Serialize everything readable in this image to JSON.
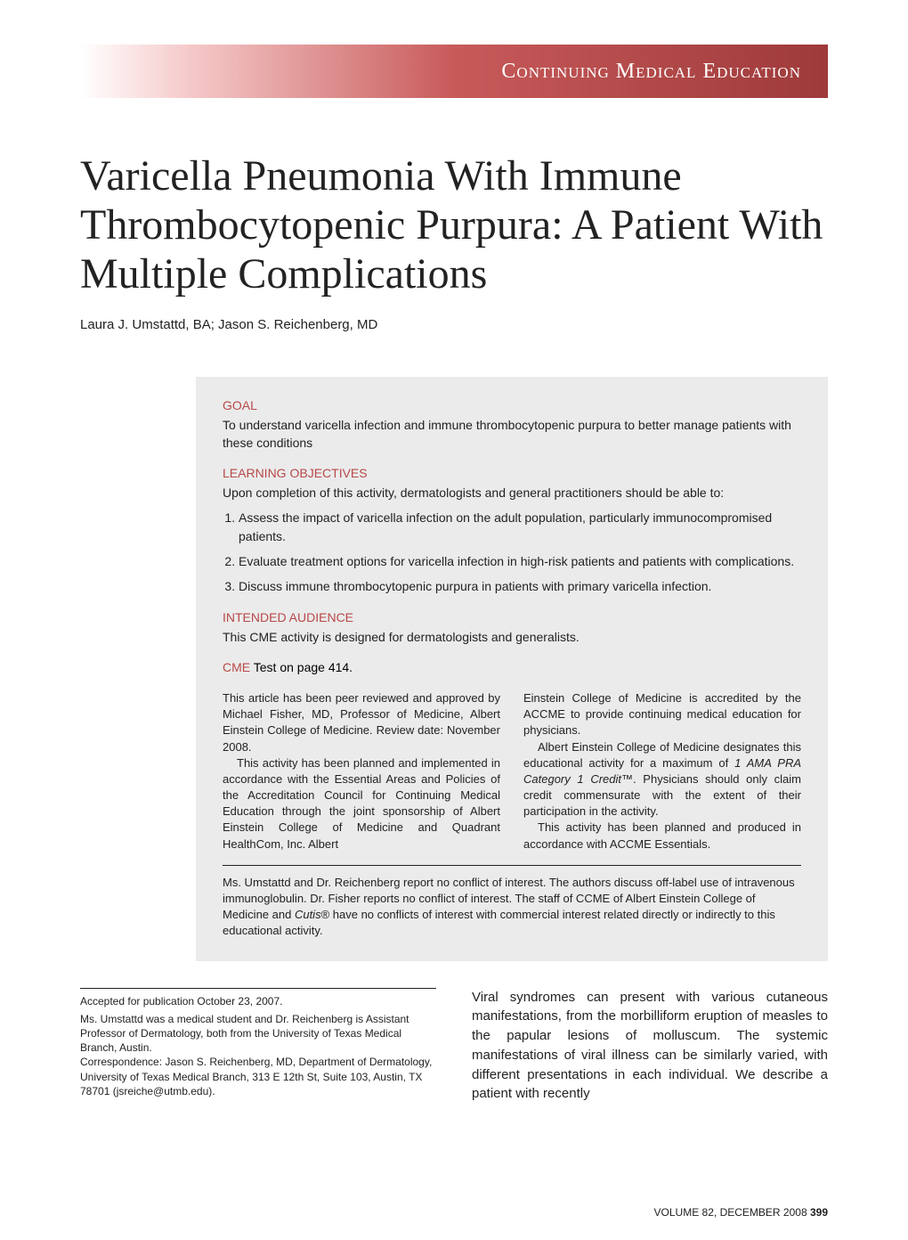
{
  "header": {
    "banner_text": "Continuing Medical Education",
    "gradient_start": "#ffffff",
    "gradient_mid": "#c85a5a",
    "gradient_end": "#9e3a3a",
    "text_color": "#ffffff"
  },
  "article": {
    "title": "Varicella Pneumonia With Immune Thrombocytopenic Purpura: A Patient With Multiple Complications",
    "authors": "Laura J. Umstattd, BA; Jason S. Reichenberg, MD"
  },
  "cme": {
    "goal_head": "GOAL",
    "goal_body": "To understand varicella infection and immune thrombocytopenic purpura to better manage patients with these conditions",
    "objectives_head": "LEARNING OBJECTIVES",
    "objectives_intro": "Upon completion of this activity, dermatologists and general practitioners should be able to:",
    "objectives": [
      "Assess the impact of varicella infection on the adult population, particularly immunocompromised patients.",
      "Evaluate treatment options for varicella infection in high-risk patients and patients with complications.",
      "Discuss immune thrombocytopenic purpura in patients with primary varicella infection."
    ],
    "audience_head": "INTENDED AUDIENCE",
    "audience_body": "This CME activity is designed for dermatologists and generalists.",
    "cme_label": "CME",
    "cme_test_text": " Test on page 414.",
    "approval_left_p1": "This article has been peer reviewed and approved by Michael Fisher, MD, Professor of Medicine, Albert Einstein College of Medicine. Review date: November 2008.",
    "approval_left_p2": "This activity has been planned and implemented in accordance with the Essential Areas and Policies of the Accreditation Council for Continuing Medical Education through the joint sponsorship of Albert Einstein College of Medicine and Quadrant HealthCom, Inc. Albert",
    "approval_right_p1": "Einstein College of Medicine is accredited by the ACCME to provide continuing medical education for physicians.",
    "approval_right_p2_a": "Albert Einstein College of Medicine designates this educational activity for a maximum of ",
    "approval_right_p2_credit": "1 AMA PRA Category 1 Credit",
    "approval_right_p2_b": "™. Physicians should only claim credit commensurate with the extent of their participation in the activity.",
    "approval_right_p3": "This activity has been planned and produced in accordance with ACCME Essentials.",
    "disclosure_a": "Ms. Umstattd and Dr. Reichenberg report no conflict of interest. The authors discuss off-label use of intravenous immunoglobulin. Dr. Fisher reports no conflict of interest. The staff of CCME of Albert Einstein College of Medicine and ",
    "disclosure_cutis": "Cutis",
    "disclosure_b": "® have no conflicts of interest with commercial interest related directly or indirectly to this educational activity."
  },
  "bottom": {
    "accepted": "Accepted for publication October 23, 2007.",
    "affiliation": "Ms. Umstattd was a medical student and Dr. Reichenberg is Assistant Professor of Dermatology, both from the University of Texas Medical Branch, Austin.",
    "correspondence": "Correspondence: Jason S. Reichenberg, MD, Department of Dermatology, University of Texas Medical Branch, 313 E 12th St, Suite 103, Austin, TX 78701 (jsreiche@utmb.edu).",
    "abstract_intro": "Viral syndromes can present with various cutaneous manifestations, from the morbilliform eruption of measles to the papular lesions of molluscum. The systemic manifestations of viral illness can be similarly varied, with different presentations in each individual. We describe a patient with recently"
  },
  "footer": {
    "volume": "VOLUME 82, DECEMBER 2008",
    "page": "399"
  },
  "colors": {
    "accent": "#b84848",
    "box_bg": "#ebebeb",
    "text": "#222222"
  }
}
